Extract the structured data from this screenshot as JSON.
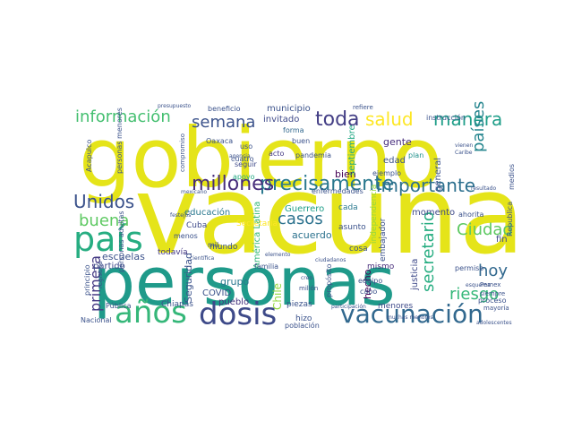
{
  "word_cloud": {
    "words": [
      {
        "text": "gobierno",
        "color": "#e5e419"
      },
      {
        "text": "vacuna",
        "color": "#e5e419"
      },
      {
        "text": "personas",
        "color": "#1f9a8a"
      },
      {
        "text": "país",
        "color": "#26ad81"
      },
      {
        "text": "vacunación",
        "color": "#31688e"
      },
      {
        "text": "años",
        "color": "#35b779"
      },
      {
        "text": "dosis",
        "color": "#3e4a89"
      },
      {
        "text": "precisamente",
        "color": "#2a788e"
      },
      {
        "text": "importante",
        "color": "#2d708e"
      },
      {
        "text": "millones",
        "color": "#472d7b"
      },
      {
        "text": "información",
        "color": "#44bf70"
      },
      {
        "text": "toda",
        "color": "#433e85"
      },
      {
        "text": "manera",
        "color": "#1f9e89"
      },
      {
        "text": "semana",
        "color": "#3b528b"
      },
      {
        "text": "salud",
        "color": "#fde725"
      },
      {
        "text": "Unidos",
        "color": "#3b528b"
      },
      {
        "text": "casos",
        "color": "#2c728e"
      },
      {
        "text": "buena",
        "color": "#5ec962"
      },
      {
        "text": "Ciudad",
        "color": "#5ec962"
      },
      {
        "text": "riesgo",
        "color": "#35b779"
      },
      {
        "text": "hoy",
        "color": "#31688e"
      },
      {
        "text": "países",
        "color": "#25858e"
      },
      {
        "text": "secretario",
        "color": "#27ad81"
      },
      {
        "text": "primera",
        "color": "#443983"
      },
      {
        "text": "escuelas",
        "color": "#3b528b"
      },
      {
        "text": "acuerdo",
        "color": "#2c728e"
      },
      {
        "text": "Guerrero",
        "color": "#1f9e89"
      },
      {
        "text": "municipio",
        "color": "#3b528b"
      },
      {
        "text": "invitado",
        "color": "#3e4989"
      },
      {
        "text": "gente",
        "color": "#472d7b"
      },
      {
        "text": "edad",
        "color": "#3b528b"
      },
      {
        "text": "bien",
        "color": "#440154"
      },
      {
        "text": "Seguridad",
        "color": "#3b528b"
      },
      {
        "text": "COVID",
        "color": "#3b528b"
      },
      {
        "text": "Chile",
        "color": "#95d840"
      },
      {
        "text": "educación",
        "color": "#2a788e"
      },
      {
        "text": "momento",
        "color": "#3e4a89"
      },
      {
        "text": "grupo",
        "color": "#2a788e"
      },
      {
        "text": "pueblo",
        "color": "#46327e"
      },
      {
        "text": "mundo",
        "color": "#3b528b"
      },
      {
        "text": "fin",
        "color": "#3e4989"
      },
      {
        "text": "partido",
        "color": "#3e4989"
      },
      {
        "text": "todavía",
        "color": "#443983"
      },
      {
        "text": "Cuba",
        "color": "#3e4989"
      },
      {
        "text": "hecho",
        "color": "#440154"
      },
      {
        "text": "cosa",
        "color": "#3b528b"
      },
      {
        "text": "mismo",
        "color": "#472d7b"
      },
      {
        "text": "general",
        "color": "#3b528b"
      },
      {
        "text": "plan",
        "color": "#21918c"
      },
      {
        "text": "justicia",
        "color": "#3e4989"
      },
      {
        "text": "embajador",
        "color": "#3b528b"
      },
      {
        "text": "cada",
        "color": "#2a788e"
      },
      {
        "text": "asunto",
        "color": "#3b528b"
      },
      {
        "text": "piezas",
        "color": "#3b528b"
      },
      {
        "text": "hizo",
        "color": "#3b528b"
      },
      {
        "text": "menores",
        "color": "#3e4989"
      },
      {
        "text": "Secretaría",
        "color": "#fde725"
      },
      {
        "text": "América Latina",
        "color": "#35b779"
      },
      {
        "text": "septiembre",
        "color": "#22a884"
      },
      {
        "text": "ejemplo",
        "color": "#3b528b"
      },
      {
        "text": "pandemia",
        "color": "#3b528b"
      },
      {
        "text": "acto",
        "color": "#443983"
      },
      {
        "text": "seguir",
        "color": "#3e4989"
      },
      {
        "text": "uso",
        "color": "#3b528b"
      },
      {
        "text": "forma",
        "color": "#31688e"
      },
      {
        "text": "buen",
        "color": "#3b528b"
      },
      {
        "text": "cuatro",
        "color": "#3b528b"
      },
      {
        "text": "Oaxaca",
        "color": "#3b528b"
      },
      {
        "text": "apoyo",
        "color": "#22a884"
      },
      {
        "text": "mil",
        "color": "#3b528b"
      },
      {
        "text": "Acapulco",
        "color": "#3b528b"
      },
      {
        "text": "Chiapas",
        "color": "#3b528b"
      },
      {
        "text": "Pública",
        "color": "#3b528b"
      },
      {
        "text": "Nacional",
        "color": "#3b528b"
      },
      {
        "text": "principio",
        "color": "#3b528b"
      },
      {
        "text": "registros",
        "color": "#3b528b"
      },
      {
        "text": "personas menores",
        "color": "#3b528b"
      },
      {
        "text": "personas adultas",
        "color": "#3b528b"
      },
      {
        "text": "menos",
        "color": "#3b528b"
      },
      {
        "text": "familia",
        "color": "#3b528b"
      },
      {
        "text": "beneficio",
        "color": "#3b528b"
      },
      {
        "text": "compromiso",
        "color": "#3b528b"
      },
      {
        "text": "instrucción",
        "color": "#3b528b"
      },
      {
        "text": "refiere",
        "color": "#3b528b"
      },
      {
        "text": "presupuesto",
        "color": "#3b528b"
      },
      {
        "text": "independencia",
        "color": "#95d840"
      },
      {
        "text": "Republica",
        "color": "#3b528b"
      },
      {
        "text": "medios",
        "color": "#3b528b"
      },
      {
        "text": "ahorita",
        "color": "#3b528b"
      },
      {
        "text": "enfermedades",
        "color": "#3b528b"
      },
      {
        "text": "equipo",
        "color": "#3b528b"
      },
      {
        "text": "permiso",
        "color": "#3b528b"
      },
      {
        "text": "cabo",
        "color": "#3b528b"
      },
      {
        "text": "proceso",
        "color": "#3b528b"
      },
      {
        "text": "siempre",
        "color": "#3b528b"
      },
      {
        "text": "Pemex",
        "color": "#3b528b"
      },
      {
        "text": "mayoría",
        "color": "#3b528b"
      },
      {
        "text": "propósito",
        "color": "#3b528b"
      },
      {
        "text": "población",
        "color": "#3b528b"
      },
      {
        "text": "participación",
        "color": "#3b528b"
      },
      {
        "text": "Caribe",
        "color": "#3b528b"
      },
      {
        "text": "vienen",
        "color": "#3b528b"
      },
      {
        "text": "millón",
        "color": "#3b528b"
      },
      {
        "text": "muchas menores",
        "color": "#3b528b"
      },
      {
        "text": "científica",
        "color": "#3b528b"
      },
      {
        "text": "festejos",
        "color": "#3b528b"
      },
      {
        "text": "mexicano",
        "color": "#3b528b"
      },
      {
        "text": "agencia",
        "color": "#3b528b"
      },
      {
        "text": "esquema",
        "color": "#3b528b"
      },
      {
        "text": "resultado",
        "color": "#3b528b"
      },
      {
        "text": "adolescentes",
        "color": "#3b528b"
      },
      {
        "text": "elemento",
        "color": "#3b528b"
      },
      {
        "text": "ciudadanos",
        "color": "#3b528b"
      },
      {
        "text": "creo",
        "color": "#3b528b"
      }
    ]
  }
}
